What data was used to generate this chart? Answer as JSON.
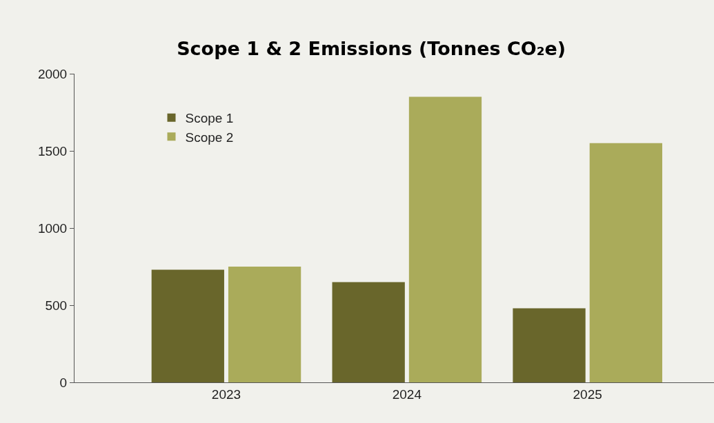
{
  "chart_data": {
    "type": "bar",
    "title": "Scope 1 & 2 Emissions (Tonnes CO₂e)",
    "categories": [
      "2023",
      "2024",
      "2025"
    ],
    "series": [
      {
        "name": "Scope 1",
        "color": "#69662b",
        "values": [
          730,
          650,
          480
        ]
      },
      {
        "name": "Scope 2",
        "color": "#aaab5a",
        "values": [
          750,
          1850,
          1550
        ]
      }
    ],
    "ylim": [
      0,
      2000
    ],
    "yticks": [
      0,
      500,
      1000,
      1500,
      2000
    ],
    "grid": false,
    "legend": "top left"
  }
}
